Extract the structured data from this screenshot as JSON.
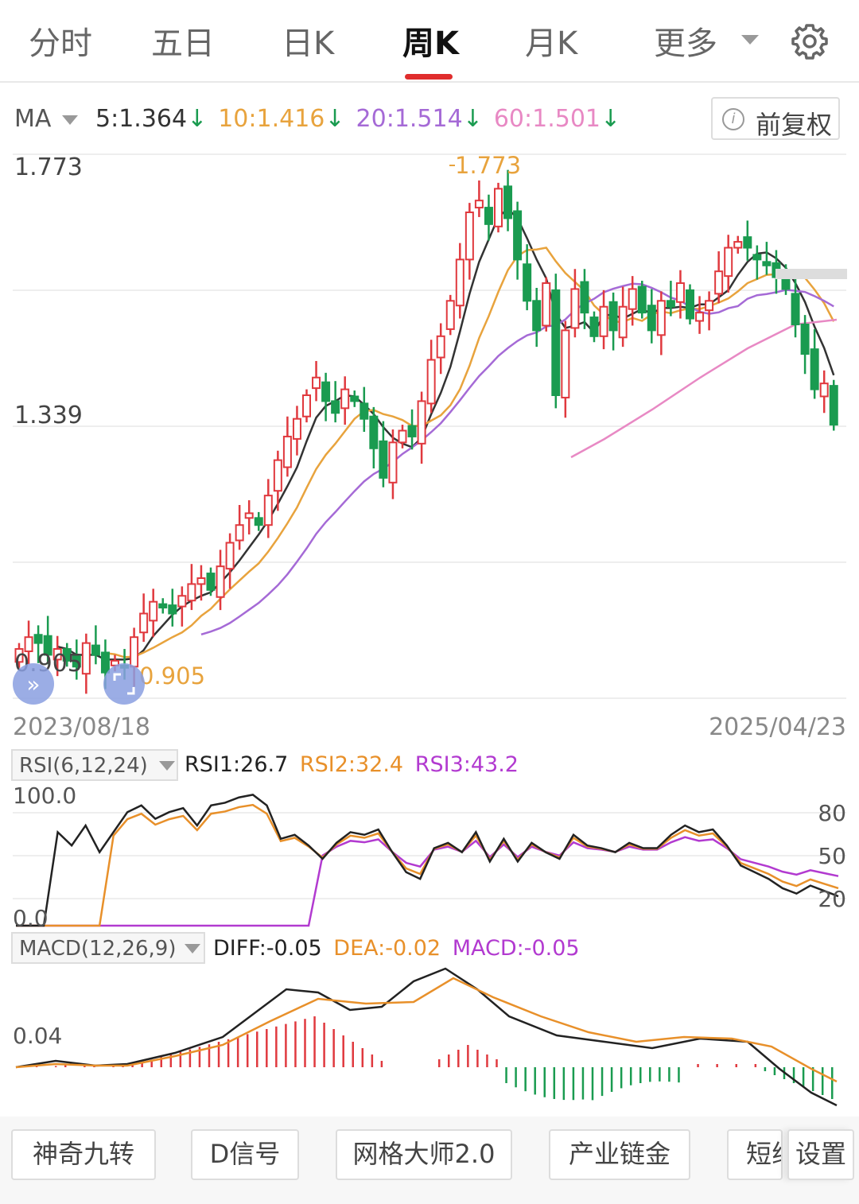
{
  "tabs": [
    {
      "label": "分时"
    },
    {
      "label": "五日"
    },
    {
      "label": "日K"
    },
    {
      "label": "周K",
      "active": true
    },
    {
      "label": "月K"
    },
    {
      "label": "更多"
    }
  ],
  "ma": {
    "label": "MA",
    "items": [
      {
        "text": "5:1.364",
        "color": "#333333"
      },
      {
        "text": "10:1.416",
        "color": "#e8a33d"
      },
      {
        "text": "20:1.514",
        "color": "#a56ad6"
      },
      {
        "text": "60:1.501",
        "color": "#e889c4"
      }
    ],
    "down_arrow": "↓",
    "arrow_color": "#1a9b50"
  },
  "adjust_button": {
    "label": "前复权",
    "icon": "info-icon"
  },
  "main_chart": {
    "price_high_label": "1.773",
    "price_mid_label": "1.339",
    "price_low_label": "0.905",
    "max_marker": "1.773",
    "min_marker": "0.905",
    "start_date": "2023/08/18",
    "end_date": "2025/04/23"
  },
  "rsi": {
    "selector": "RSI(6,12,24)",
    "rsi1": "RSI1:26.7",
    "rsi2": "RSI2:32.4",
    "rsi3": "RSI3:43.2",
    "top_label": "100.0",
    "bottom_label": "0.0",
    "right_labels": [
      "80",
      "50",
      "20"
    ]
  },
  "macd": {
    "selector": "MACD(12,26,9)",
    "diff": "DIFF:-0.05",
    "dea": "DEA:-0.02",
    "macd": "MACD:-0.05",
    "scale_label": "0.04"
  },
  "bottom_buttons": [
    {
      "label": "神奇九转"
    },
    {
      "label": "D信号"
    },
    {
      "label": "网格大师2.0"
    },
    {
      "label": "产业链金"
    },
    {
      "label": "短线"
    },
    {
      "label": "设置"
    }
  ],
  "colors": {
    "up": "#e0393e",
    "down": "#1a9b50",
    "ma5": "#333333",
    "ma10": "#e8a33d",
    "ma20": "#a56ad6",
    "ma60": "#e889c4",
    "tab_accent": "#e02d2d"
  },
  "chart_data": [
    {
      "type": "candlestick",
      "period": "weekly",
      "x_range": [
        "2023/08/18",
        "2025/04/23"
      ],
      "y_labels": [
        1.773,
        1.339,
        0.905
      ],
      "high": 1.773,
      "low": 0.905,
      "ma_latest": {
        "MA5": 1.364,
        "MA10": 1.416,
        "MA20": 1.514,
        "MA60": 1.501
      }
    },
    {
      "type": "line",
      "name": "RSI",
      "params": [
        6,
        12,
        24
      ],
      "latest": {
        "RSI1": 26.7,
        "RSI2": 32.4,
        "RSI3": 43.2
      },
      "ylim": [
        0,
        100
      ],
      "reference_lines": [
        80,
        50,
        20
      ]
    },
    {
      "type": "bar",
      "name": "MACD",
      "params": [
        12,
        26,
        9
      ],
      "latest": {
        "DIFF": -0.05,
        "DEA": -0.02,
        "MACD": -0.05
      }
    }
  ]
}
